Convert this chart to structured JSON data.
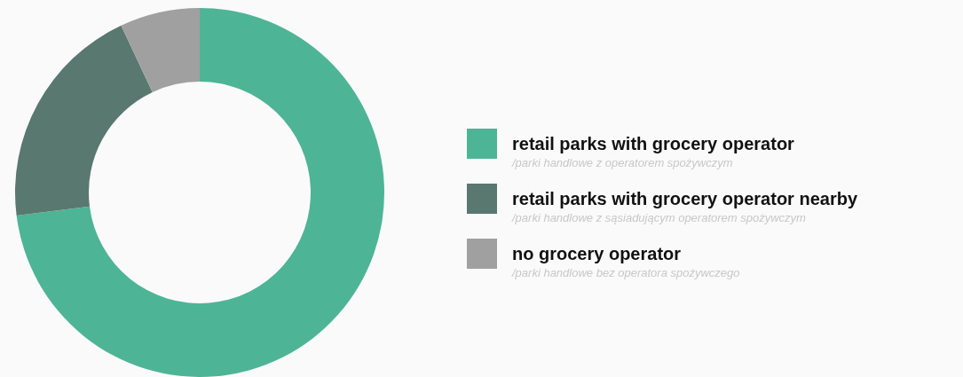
{
  "chart_data": {
    "type": "donut",
    "categories": [
      "retail parks with grocery operator",
      "retail parks with grocery operator nearby",
      "no grocery operator"
    ],
    "values": [
      73,
      20,
      7
    ],
    "colors": [
      "#4db596",
      "#59786f",
      "#a0a0a0"
    ],
    "legend": "right",
    "annotations": [
      "/parki handlowe z operatorem spożywczym",
      "/parki handlowe z sąsiadującym operatorem spożywczym",
      "/parki handlowe bez operatora spożywczego"
    ]
  }
}
